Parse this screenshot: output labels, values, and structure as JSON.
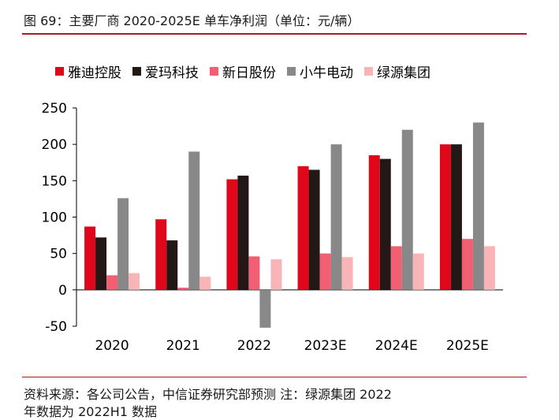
{
  "header": {
    "title": "图 69：主要厂商 2020-2025E 单车净利润（单位：元/辆）"
  },
  "footer": {
    "source": "资料来源：各公司公告，中信证券研究部预测    注：绿源集团  2022",
    "source_cont": "年数据为 2022H1 数据"
  },
  "chart_data": {
    "type": "bar",
    "title": "",
    "xlabel": "",
    "ylabel": "",
    "categories": [
      "2020",
      "2021",
      "2022",
      "2023E",
      "2024E",
      "2025E"
    ],
    "ylim": [
      -50,
      250
    ],
    "yticks": [
      250,
      200,
      150,
      100,
      50,
      0,
      -50
    ],
    "grid": false,
    "legend_position": "top",
    "series": [
      {
        "name": "雅迪控股",
        "color": "#e0071b",
        "values": [
          87,
          97,
          152,
          170,
          185,
          200
        ]
      },
      {
        "name": "爱玛科技",
        "color": "#231815",
        "values": [
          72,
          68,
          157,
          165,
          180,
          200
        ]
      },
      {
        "name": "新日股份",
        "color": "#f25f73",
        "values": [
          20,
          3,
          46,
          50,
          60,
          70
        ]
      },
      {
        "name": "小牛电动",
        "color": "#888888",
        "values": [
          126,
          190,
          -52,
          200,
          220,
          230
        ]
      },
      {
        "name": "绿源集团",
        "color": "#f9b4b8",
        "values": [
          23,
          18,
          42,
          45,
          50,
          60
        ]
      }
    ]
  }
}
